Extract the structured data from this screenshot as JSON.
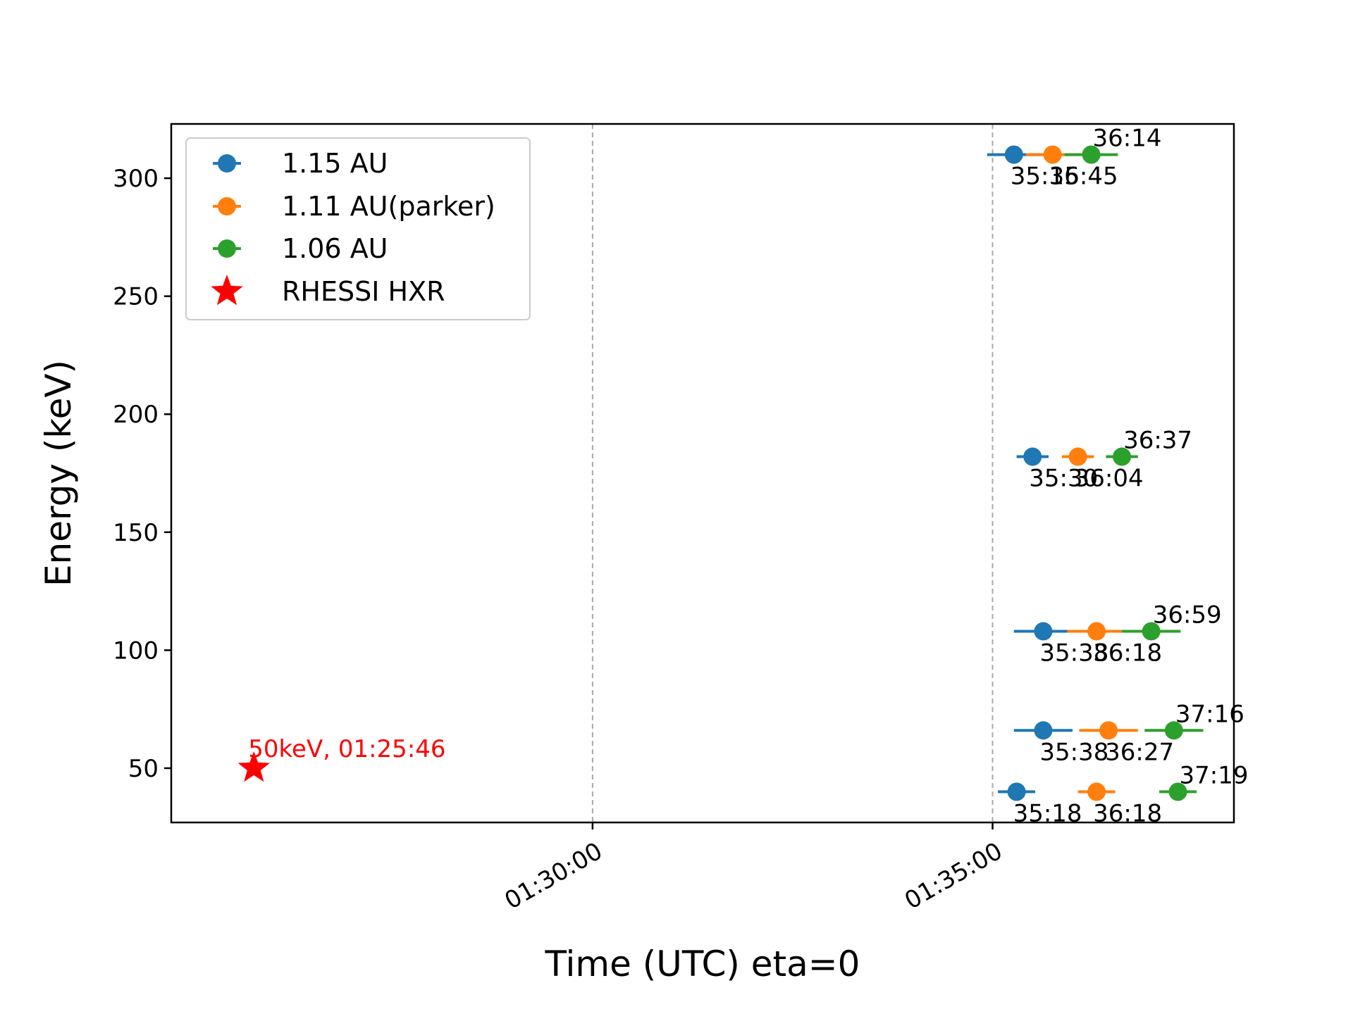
{
  "chart_data": {
    "type": "scatter",
    "xlabel": "Time (UTC) eta=0",
    "ylabel": "Energy (keV)",
    "xlim": [
      "01:24:44",
      "01:38:01"
    ],
    "ylim": [
      27,
      323
    ],
    "x_ticks": [
      "01:30:00",
      "01:35:00"
    ],
    "y_ticks": [
      50,
      100,
      150,
      200,
      250,
      300
    ],
    "vlines": [
      "01:30:00",
      "01:35:00"
    ],
    "legend_position": "upper left",
    "series": [
      {
        "name": "1.15 AU",
        "color": "#1f77b4",
        "points": [
          {
            "x": "01:35:16",
            "y": 310,
            "xerr_minus": 20,
            "xerr_plus": 20,
            "label": "35:16"
          },
          {
            "x": "01:35:30",
            "y": 182,
            "xerr_minus": 12,
            "xerr_plus": 12,
            "label": "35:30"
          },
          {
            "x": "01:35:38",
            "y": 108,
            "xerr_minus": 22,
            "xerr_plus": 22,
            "label": "35:38"
          },
          {
            "x": "01:35:38",
            "y": 66,
            "xerr_minus": 22,
            "xerr_plus": 22,
            "label": "35:38"
          },
          {
            "x": "01:35:18",
            "y": 40,
            "xerr_minus": 14,
            "xerr_plus": 14,
            "label": "35:18"
          }
        ]
      },
      {
        "name": "1.11 AU(parker)",
        "color": "#ff7f0e",
        "points": [
          {
            "x": "01:35:45",
            "y": 310,
            "xerr_minus": 20,
            "xerr_plus": 20,
            "label": "35:45"
          },
          {
            "x": "01:36:04",
            "y": 182,
            "xerr_minus": 12,
            "xerr_plus": 12,
            "label": "36:04"
          },
          {
            "x": "01:36:18",
            "y": 108,
            "xerr_minus": 22,
            "xerr_plus": 22,
            "label": "36:18"
          },
          {
            "x": "01:36:27",
            "y": 66,
            "xerr_minus": 22,
            "xerr_plus": 22,
            "label": "36:27"
          },
          {
            "x": "01:36:18",
            "y": 40,
            "xerr_minus": 14,
            "xerr_plus": 14,
            "label": "36:18"
          }
        ]
      },
      {
        "name": "1.06 AU",
        "color": "#2ca02c",
        "points": [
          {
            "x": "01:36:14",
            "y": 310,
            "xerr_minus": 20,
            "xerr_plus": 20,
            "label": "36:14"
          },
          {
            "x": "01:36:37",
            "y": 182,
            "xerr_minus": 12,
            "xerr_plus": 12,
            "label": "36:37"
          },
          {
            "x": "01:36:59",
            "y": 108,
            "xerr_minus": 22,
            "xerr_plus": 22,
            "label": "36:59"
          },
          {
            "x": "01:37:16",
            "y": 66,
            "xerr_minus": 22,
            "xerr_plus": 22,
            "label": "37:16"
          },
          {
            "x": "01:37:19",
            "y": 40,
            "xerr_minus": 14,
            "xerr_plus": 14,
            "label": "37:19"
          }
        ]
      }
    ],
    "marker_series": {
      "name": "RHESSI HXR",
      "color": "#ff0000",
      "marker": "star",
      "x": "01:25:46",
      "y": 50,
      "label": "50keV, 01:25:46"
    }
  }
}
